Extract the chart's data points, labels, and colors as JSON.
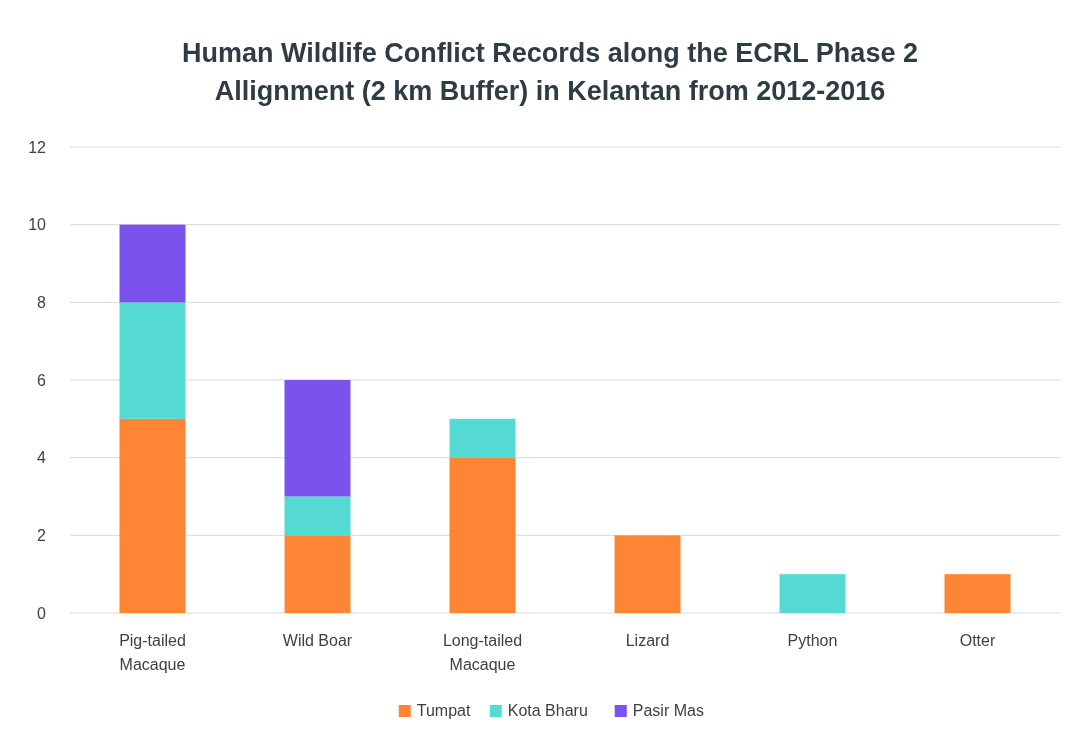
{
  "chart_data": {
    "type": "bar",
    "title": "Human Wildlife Conflict Records along the ECRL Phase 2 Allignment (2 km Buffer) in Kelantan from 2012-2016",
    "categories": [
      "Pig-tailed Macaque",
      "Wild Boar",
      "Long-tailed Macaque",
      "Lizard",
      "Python",
      "Otter"
    ],
    "stacked": true,
    "series": [
      {
        "name": "Tumpat",
        "color": "#fe8533",
        "values": [
          5,
          2,
          4,
          2,
          null,
          1
        ]
      },
      {
        "name": "Kota Bharu",
        "color": "#55d9d3",
        "values": [
          3,
          1,
          1,
          null,
          1,
          null
        ]
      },
      {
        "name": "Pasir Mas",
        "color": "#7b52ec",
        "values": [
          2,
          3,
          null,
          null,
          null,
          null
        ]
      }
    ],
    "ylim": [
      0,
      12
    ],
    "yticks": [
      0,
      2,
      4,
      6,
      8,
      10,
      12
    ],
    "grid": "y",
    "legend": "bottom"
  }
}
